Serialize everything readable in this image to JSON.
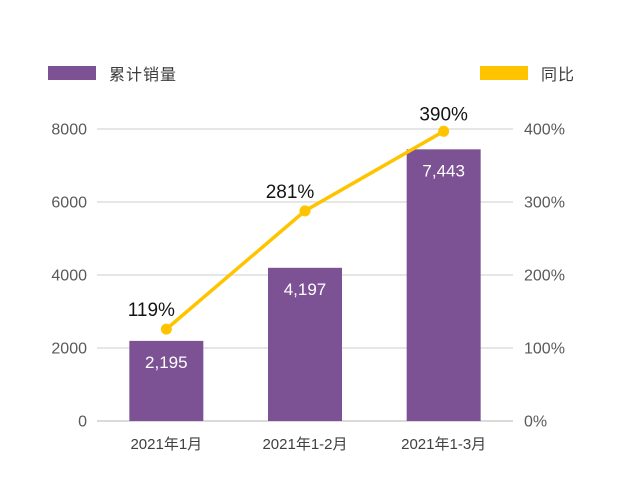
{
  "legend": {
    "items": [
      {
        "id": "bar",
        "label": "累计销量",
        "color": "#7C5295"
      },
      {
        "id": "line",
        "label": "同比",
        "color": "#FFC400"
      }
    ]
  },
  "chart_data": {
    "type": "bar",
    "subtype": "combo-bar-line-dual-axis",
    "title": "",
    "categories": [
      "2021年1月",
      "2021年1-2月",
      "2021年1-3月"
    ],
    "series": [
      {
        "name": "累计销量",
        "type": "bar",
        "axis": "left",
        "values": [
          2195,
          4197,
          7443
        ],
        "labels": [
          "2,195",
          "4,197",
          "7,443"
        ],
        "color": "#7C5295",
        "label_color": "#ffffff"
      },
      {
        "name": "同比",
        "type": "line",
        "axis": "right",
        "values": [
          119,
          281,
          390
        ],
        "labels": [
          "119%",
          "281%",
          "390%"
        ],
        "color": "#FFC400",
        "label_color": "#141414"
      }
    ],
    "left_axis": {
      "ticks": [
        "0",
        "2000",
        "4000",
        "6000",
        "8000"
      ],
      "min": 0,
      "max": 8000
    },
    "right_axis": {
      "ticks": [
        "0%",
        "100%",
        "200%",
        "300%",
        "400%"
      ],
      "min": 0,
      "max": 400
    },
    "grid": true,
    "gridline_color": "#d6d6d6",
    "baseline_color": "#c4c4c4",
    "legend_position": "top"
  }
}
